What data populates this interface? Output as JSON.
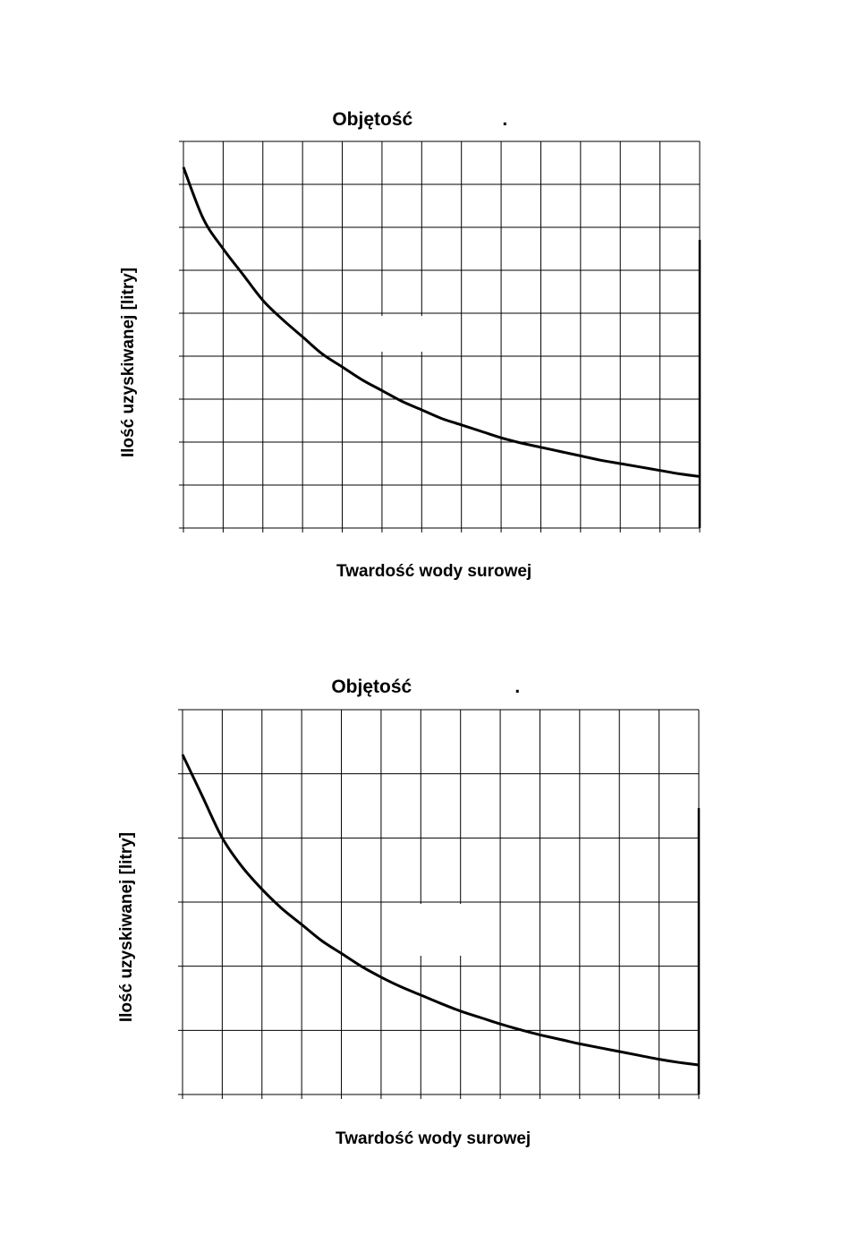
{
  "chart_data": [
    {
      "type": "line",
      "title": "Objętość",
      "title_suffix": ".",
      "xlabel": "Twardość wody surowej",
      "ylabel": "Ilość uzyskiwanej [litry]",
      "grid": true,
      "xlim": [
        0,
        13
      ],
      "ylim": [
        0,
        9
      ],
      "series": [
        {
          "x": [
            0,
            0.5,
            1,
            1.5,
            2,
            2.5,
            3,
            3.5,
            4,
            4.5,
            5,
            5.5,
            6,
            6.5,
            7,
            7.5,
            8,
            8.5,
            9,
            9.5,
            10,
            10.5,
            11,
            11.5,
            12,
            12.5,
            13
          ],
          "values": [
            8.4,
            7.2,
            6.5,
            5.9,
            5.3,
            4.85,
            4.45,
            4.05,
            3.75,
            3.45,
            3.2,
            2.95,
            2.75,
            2.55,
            2.4,
            2.25,
            2.1,
            1.98,
            1.88,
            1.78,
            1.68,
            1.58,
            1.5,
            1.42,
            1.34,
            1.26,
            1.2
          ]
        }
      ]
    },
    {
      "type": "line",
      "title": "Objętość",
      "title_suffix": ".",
      "xlabel": "Twardość wody surowej",
      "ylabel": "Ilość uzyskiwanej [litry]",
      "grid": true,
      "xlim": [
        0,
        13
      ],
      "ylim": [
        0,
        6
      ],
      "series": [
        {
          "x": [
            0,
            0.5,
            1,
            1.5,
            2,
            2.5,
            3,
            3.5,
            4,
            4.5,
            5,
            5.5,
            6,
            6.5,
            7,
            7.5,
            8,
            8.5,
            9,
            9.5,
            10,
            10.5,
            11,
            11.5,
            12,
            12.5,
            13
          ],
          "values": [
            5.3,
            4.65,
            4.0,
            3.55,
            3.2,
            2.9,
            2.65,
            2.4,
            2.2,
            2.0,
            1.83,
            1.68,
            1.55,
            1.42,
            1.3,
            1.2,
            1.1,
            1.01,
            0.93,
            0.86,
            0.79,
            0.73,
            0.67,
            0.61,
            0.55,
            0.5,
            0.46
          ]
        }
      ]
    }
  ]
}
